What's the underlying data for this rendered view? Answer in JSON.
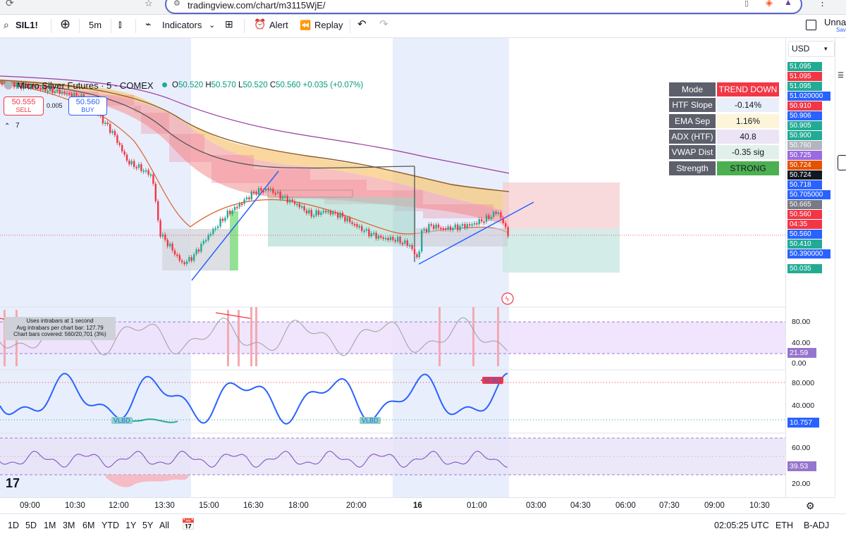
{
  "browser": {
    "url": "tradingview.com/chart/m3115WjE/"
  },
  "toolbar": {
    "symbol": "SIL1!",
    "interval": "5m",
    "indicators": "Indicators",
    "alert": "Alert",
    "replay": "Replay",
    "right_label": "Unna",
    "right_sub": "Sav"
  },
  "legend": {
    "title": "Micro Silver Futures · 5 · COMEX",
    "o_label": "O",
    "o": "50.520",
    "h_label": "H",
    "h": "50.570",
    "l_label": "L",
    "l": "50.520",
    "c_label": "C",
    "c": "50.560",
    "change": "+0.035 (+0.07%)",
    "layers": "7"
  },
  "trade": {
    "sell_price": "50.555",
    "sell_label": "SELL",
    "spread": "0.005",
    "buy_price": "50.560",
    "buy_label": "BUY"
  },
  "currency": "USD",
  "mode_table": [
    {
      "key": "Mode",
      "value": "TREND DOWN",
      "bg": "#f23645",
      "fg": "#ffffff"
    },
    {
      "key": "HTF Slope",
      "value": "-0.14%",
      "bg": "#e8eefa",
      "fg": "#131722"
    },
    {
      "key": "EMA Sep",
      "value": "1.16%",
      "bg": "#fdf5d9",
      "fg": "#131722"
    },
    {
      "key": "ADX (HTF)",
      "value": "40.8",
      "bg": "#ece4f4",
      "fg": "#131722"
    },
    {
      "key": "VWAP Dist",
      "value": "-0.35 sig",
      "bg": "#e1f0ea",
      "fg": "#131722"
    },
    {
      "key": "Strength",
      "value": "STRONG",
      "bg": "#4caf50",
      "fg": "#131722"
    }
  ],
  "intrabar": {
    "line1": "Uses intrabars at 1 second",
    "line2": "Avg intrabars per chart bar: 127.79",
    "line3": "Chart bars covered: 560/20,701 (3%)"
  },
  "price_labels": [
    {
      "v": "51.095",
      "c": "#22ab94"
    },
    {
      "v": "51.095",
      "c": "#f23645"
    },
    {
      "v": "51.095",
      "c": "#22ab94"
    },
    {
      "v": "51.020000",
      "c": "#2962ff"
    },
    {
      "v": "50.910",
      "c": "#f23645"
    },
    {
      "v": "50.906",
      "c": "#2962ff"
    },
    {
      "v": "50.905",
      "c": "#22ab94"
    },
    {
      "v": "50.900",
      "c": "#22ab94"
    },
    {
      "v": "50.760",
      "c": "#b2b5be"
    },
    {
      "v": "50.725",
      "c": "#9c6ade"
    },
    {
      "v": "50.724",
      "c": "#e65100"
    },
    {
      "v": "50.724",
      "c": "#131722"
    },
    {
      "v": "50.718",
      "c": "#2962ff"
    },
    {
      "v": "50.705000",
      "c": "#2962ff"
    },
    {
      "v": "50.665",
      "c": "#787b86"
    },
    {
      "v": "50.560",
      "c": "#f23645"
    },
    {
      "v": "04:35",
      "c": "#f23645"
    },
    {
      "v": "50.560",
      "c": "#2962ff"
    },
    {
      "v": "50.410",
      "c": "#22ab94"
    },
    {
      "v": "50.390000",
      "c": "#2962ff"
    },
    {
      "v": "50.035",
      "c": "#22ab94"
    }
  ],
  "ind1": {
    "ticks": [
      "80.00",
      "40.00",
      "0.00"
    ],
    "value": "21.59",
    "value_color": "#9575cd"
  },
  "ind2": {
    "ticks": [
      "80.000",
      "40.000"
    ],
    "value": "10.757",
    "value_color": "#2962ff",
    "tags": [
      "VLBD",
      "VLBD",
      "VLBD"
    ]
  },
  "ind3": {
    "ticks": [
      "60.00",
      "20.00"
    ],
    "value": "39.53",
    "value_color": "#9575cd"
  },
  "time_ticks": [
    "09:00",
    "10:30",
    "12:00",
    "13:30",
    "15:00",
    "16:30",
    "18:00",
    "20:00",
    "16",
    "01:00",
    "03:00",
    "04:30",
    "06:00",
    "07:30",
    "09:00",
    "10:30"
  ],
  "ranges": [
    "1D",
    "5D",
    "1M",
    "3M",
    "6M",
    "YTD",
    "1Y",
    "5Y",
    "All"
  ],
  "status": {
    "time": "02:05:25 UTC",
    "session": "ETH",
    "adj": "B-ADJ"
  },
  "colors": {
    "up": "#22ab94",
    "down": "#f23645",
    "sessionShade": "#e8eefc"
  }
}
